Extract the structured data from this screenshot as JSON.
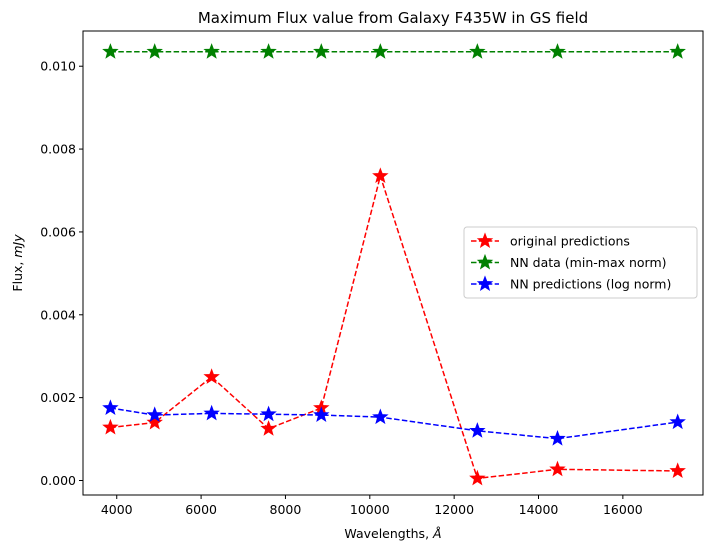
{
  "chart_data": {
    "type": "line",
    "title": "Maximum Flux value from Galaxy F435W in GS field",
    "xlabel_prefix": "Wavelengths, ",
    "xlabel_unit": "Å",
    "ylabel_prefix": "Flux, ",
    "ylabel_unit": "mJy",
    "xlim": [
      3200,
      17900
    ],
    "ylim": [
      -0.00035,
      0.01085
    ],
    "xticks": [
      4000,
      6000,
      8000,
      10000,
      12000,
      14000,
      16000
    ],
    "yticks": [
      0.0,
      0.002,
      0.004,
      0.006,
      0.008,
      0.01
    ],
    "xtick_labels": [
      "4000",
      "6000",
      "8000",
      "10000",
      "12000",
      "14000",
      "16000"
    ],
    "ytick_labels": [
      "0.000",
      "0.002",
      "0.004",
      "0.006",
      "0.008",
      "0.010"
    ],
    "grid": false,
    "legend_position": "center-right",
    "x": [
      3850,
      4900,
      6250,
      7600,
      8850,
      10250,
      12550,
      14450,
      17300
    ],
    "series": [
      {
        "name": "original predictions",
        "color": "#ff0000",
        "values": [
          0.00128,
          0.0014,
          0.0025,
          0.00125,
          0.00175,
          0.00735,
          5e-05,
          0.00027,
          0.00023
        ]
      },
      {
        "name": "NN data (min-max norm)",
        "color": "#008000",
        "values": [
          0.01035,
          0.01035,
          0.01035,
          0.01035,
          0.01035,
          0.01035,
          0.01035,
          0.01035,
          0.01035
        ]
      },
      {
        "name": "NN predictions (log norm)",
        "color": "#0000ff",
        "values": [
          0.00175,
          0.00158,
          0.00162,
          0.0016,
          0.00158,
          0.00153,
          0.0012,
          0.00101,
          0.00141
        ]
      }
    ]
  }
}
